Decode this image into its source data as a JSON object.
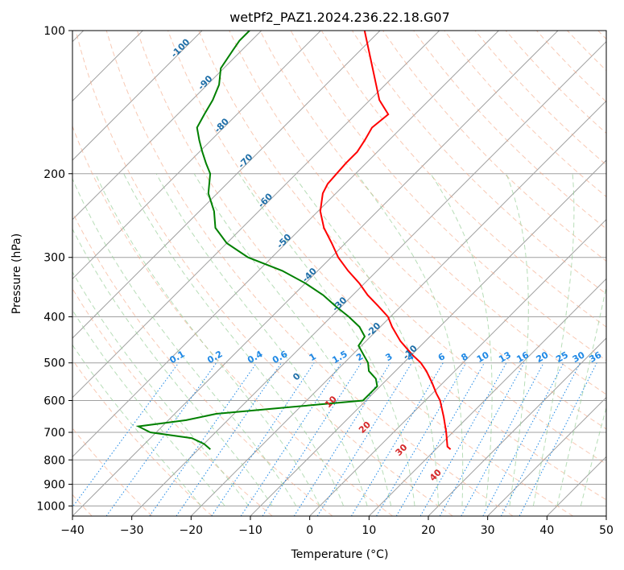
{
  "chart_data": {
    "type": "line",
    "subtype": "skew-t log-p diagram",
    "title": "wetPf2_PAZ1.2024.236.22.18.G07",
    "xlabel": "Temperature (°C)",
    "ylabel": "Pressure (hPa)",
    "xlim": [
      -40,
      50
    ],
    "ylim": [
      1050,
      100
    ],
    "y_scale": "log",
    "grid": true,
    "x_ticks": [
      -40,
      -30,
      -20,
      -10,
      0,
      10,
      20,
      30,
      40,
      50
    ],
    "x_tick_labels": [
      "−40",
      "−30",
      "−20",
      "−10",
      "0",
      "10",
      "20",
      "30",
      "40",
      "50"
    ],
    "y_ticks": [
      100,
      200,
      300,
      400,
      500,
      600,
      700,
      800,
      900,
      1000
    ],
    "y_tick_labels": [
      "100",
      "200",
      "300",
      "400",
      "500",
      "600",
      "700",
      "800",
      "900",
      "1000"
    ],
    "series": [
      {
        "color": "#ff0000",
        "points": [
          [
            100,
            -72.6
          ],
          [
            120,
            -64.9
          ],
          [
            140,
            -58.4
          ],
          [
            150,
            -54.5
          ],
          [
            160,
            -55.0
          ],
          [
            170,
            -54.1
          ],
          [
            180,
            -53.4
          ],
          [
            190,
            -53.4
          ],
          [
            200,
            -53.2
          ],
          [
            210,
            -53.0
          ],
          [
            220,
            -52.2
          ],
          [
            240,
            -49.6
          ],
          [
            260,
            -46.2
          ],
          [
            280,
            -42.3
          ],
          [
            300,
            -38.8
          ],
          [
            320,
            -34.9
          ],
          [
            340,
            -30.9
          ],
          [
            360,
            -27.5
          ],
          [
            380,
            -23.8
          ],
          [
            400,
            -20.4
          ],
          [
            420,
            -18.0
          ],
          [
            450,
            -14.2
          ],
          [
            480,
            -10.0
          ],
          [
            500,
            -7.1
          ],
          [
            520,
            -4.8
          ],
          [
            550,
            -1.9
          ],
          [
            580,
            0.7
          ],
          [
            600,
            2.5
          ],
          [
            650,
            5.9
          ],
          [
            700,
            8.9
          ],
          [
            750,
            11.5
          ],
          [
            760,
            12.5
          ]
        ]
      },
      {
        "color": "#008000",
        "points": [
          [
            100,
            -92.0
          ],
          [
            105,
            -92.0
          ],
          [
            110,
            -91.5
          ],
          [
            120,
            -90.5
          ],
          [
            130,
            -88.0
          ],
          [
            140,
            -86.5
          ],
          [
            150,
            -85.5
          ],
          [
            160,
            -84.5
          ],
          [
            170,
            -82.0
          ],
          [
            180,
            -79.5
          ],
          [
            190,
            -77.0
          ],
          [
            200,
            -74.5
          ],
          [
            220,
            -71.5
          ],
          [
            240,
            -67.5
          ],
          [
            260,
            -64.5
          ],
          [
            280,
            -60.0
          ],
          [
            300,
            -54.0
          ],
          [
            320,
            -46.0
          ],
          [
            340,
            -40.0
          ],
          [
            360,
            -35.0
          ],
          [
            380,
            -31.0
          ],
          [
            400,
            -27.0
          ],
          [
            420,
            -23.5
          ],
          [
            440,
            -21.0
          ],
          [
            460,
            -20.5
          ],
          [
            480,
            -18.2
          ],
          [
            500,
            -16.0
          ],
          [
            520,
            -14.5
          ],
          [
            540,
            -12.0
          ],
          [
            560,
            -10.5
          ],
          [
            580,
            -10.5
          ],
          [
            600,
            -10.5
          ],
          [
            620,
            -22.0
          ],
          [
            640,
            -33.0
          ],
          [
            660,
            -37.0
          ],
          [
            680,
            -44.0
          ],
          [
            700,
            -41.0
          ],
          [
            720,
            -33.0
          ],
          [
            740,
            -30.0
          ],
          [
            760,
            -28.0
          ]
        ]
      }
    ],
    "mixing_ratio_labels": [
      "0.1",
      "0.2",
      "0.4",
      "0.6",
      "1",
      "1.5",
      "2",
      "3",
      "4",
      "6",
      "8",
      "10",
      "13",
      "16",
      "20",
      "25",
      "30",
      "36"
    ],
    "dry_adiabat_labels": [
      "-100",
      "-90",
      "-80",
      "-70",
      "-60",
      "-50",
      "-40",
      "-30",
      "-20",
      "-10"
    ],
    "moist_adiabat_labels": [
      "0",
      "10",
      "20",
      "30",
      "40"
    ],
    "colors": {
      "temperature": "#ff0000",
      "dewpoint": "#008000",
      "isotherm": "#a0a0a0",
      "isobar": "#a0a0a0",
      "dry_adiabat": "#f4a582",
      "moist_adiabat": "#98cf98",
      "mixing_ratio": "#1e88e5",
      "label_dry": "#1f6fa8",
      "label_moist": "#d62728"
    }
  }
}
